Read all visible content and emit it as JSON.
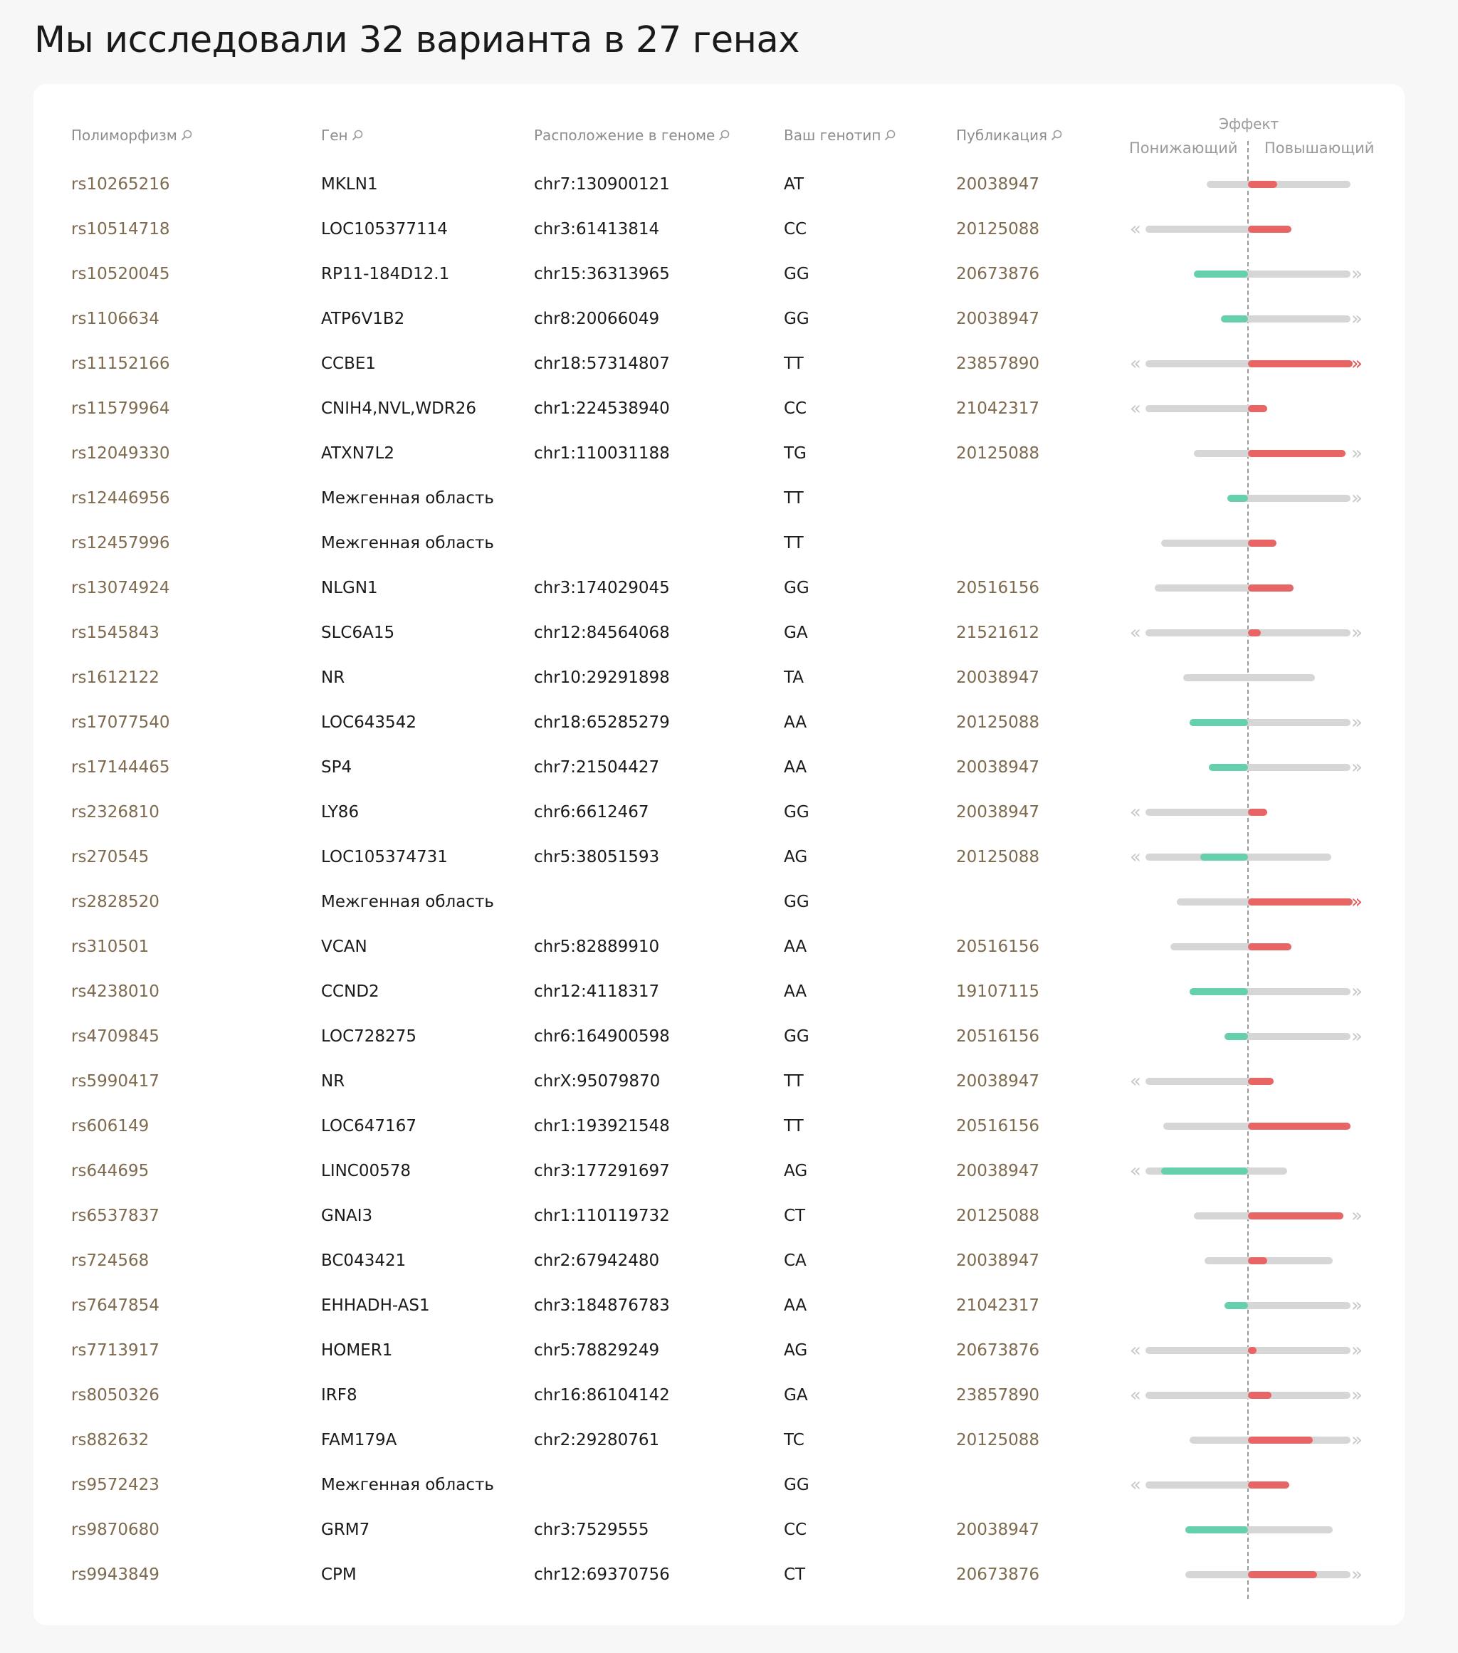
{
  "title": "Мы исследовали 32 варианта в 27 генах",
  "headers": {
    "rs": "Полиморфизм",
    "gene": "Ген",
    "location": "Расположение в геноме",
    "genotype": "Ваш генотип",
    "publication": "Публикация",
    "effect": "Эффект",
    "effect_low": "Понижающий",
    "effect_high": "Повышающий"
  },
  "icons": {
    "search": "magnifier-icon",
    "arrow_left": "«",
    "arrow_right": "»"
  },
  "colors": {
    "link": "#7e6a4e",
    "decrease": "#66cfad",
    "increase": "#e86566",
    "range": "#d6d6d6"
  },
  "rows": [
    {
      "rs": "rs10265216",
      "gene": "MKLN1",
      "loc": "chr7:130900121",
      "gt": "AT",
      "pub": "20038947",
      "range": [
        -0.38,
        0.95
      ],
      "effect": 0.27,
      "la": false,
      "ra": false,
      "rred": false
    },
    {
      "rs": "rs10514718",
      "gene": "LOC105377114",
      "loc": "chr3:61413814",
      "gt": "CC",
      "pub": "20125088",
      "range": [
        -0.95,
        0.4
      ],
      "effect": 0.4,
      "la": true,
      "ra": false,
      "rred": false
    },
    {
      "rs": "rs10520045",
      "gene": "RP11-184D12.1",
      "loc": "chr15:36313965",
      "gt": "GG",
      "pub": "20673876",
      "range": [
        -0.5,
        0.95
      ],
      "effect": -0.5,
      "la": false,
      "ra": true,
      "rred": false
    },
    {
      "rs": "rs1106634",
      "gene": "ATP6V1B2",
      "loc": "chr8:20066049",
      "gt": "GG",
      "pub": "20038947",
      "range": [
        -0.25,
        0.95
      ],
      "effect": -0.25,
      "la": false,
      "ra": true,
      "rred": false
    },
    {
      "rs": "rs11152166",
      "gene": "CCBE1",
      "loc": "chr18:57314807",
      "gt": "TT",
      "pub": "23857890",
      "range": [
        -0.95,
        0.97
      ],
      "effect": 0.97,
      "la": true,
      "ra": true,
      "rred": true
    },
    {
      "rs": "rs11579964",
      "gene": "CNIH4,NVL,WDR26",
      "loc": "chr1:224538940",
      "gt": "CC",
      "pub": "21042317",
      "range": [
        -0.95,
        0.18
      ],
      "effect": 0.18,
      "la": true,
      "ra": false,
      "rred": false
    },
    {
      "rs": "rs12049330",
      "gene": "ATXN7L2",
      "loc": "chr1:110031188",
      "gt": "TG",
      "pub": "20125088",
      "range": [
        -0.5,
        0.9
      ],
      "effect": 0.9,
      "la": false,
      "ra": true,
      "rred": false
    },
    {
      "rs": "rs12446956",
      "gene": "Межгенная область",
      "loc": "",
      "gt": "TT",
      "pub": "",
      "range": [
        -0.19,
        0.95
      ],
      "effect": -0.19,
      "la": false,
      "ra": true,
      "rred": false
    },
    {
      "rs": "rs12457996",
      "gene": "Межгенная область",
      "loc": "",
      "gt": "TT",
      "pub": "",
      "range": [
        -0.8,
        0.26
      ],
      "effect": 0.26,
      "la": false,
      "ra": false,
      "rred": false
    },
    {
      "rs": "rs13074924",
      "gene": "NLGN1",
      "loc": "chr3:174029045",
      "gt": "GG",
      "pub": "20516156",
      "range": [
        -0.86,
        0.42
      ],
      "effect": 0.42,
      "la": false,
      "ra": false,
      "rred": false
    },
    {
      "rs": "rs1545843",
      "gene": "SLC6A15",
      "loc": "chr12:84564068",
      "gt": "GA",
      "pub": "21521612",
      "range": [
        -0.95,
        0.95
      ],
      "effect": 0.12,
      "la": true,
      "ra": true,
      "rred": false
    },
    {
      "rs": "rs1612122",
      "gene": "NR",
      "loc": "chr10:29291898",
      "gt": "TA",
      "pub": "20038947",
      "range": [
        -0.6,
        0.62
      ],
      "effect": 0,
      "la": false,
      "ra": false,
      "rred": false
    },
    {
      "rs": "rs17077540",
      "gene": "LOC643542",
      "loc": "chr18:65285279",
      "gt": "AA",
      "pub": "20125088",
      "range": [
        -0.54,
        0.95
      ],
      "effect": -0.54,
      "la": false,
      "ra": true,
      "rred": false
    },
    {
      "rs": "rs17144465",
      "gene": "SP4",
      "loc": "chr7:21504427",
      "gt": "AA",
      "pub": "20038947",
      "range": [
        -0.36,
        0.95
      ],
      "effect": -0.36,
      "la": false,
      "ra": true,
      "rred": false
    },
    {
      "rs": "rs2326810",
      "gene": "LY86",
      "loc": "chr6:6612467",
      "gt": "GG",
      "pub": "20038947",
      "range": [
        -0.95,
        0.18
      ],
      "effect": 0.18,
      "la": true,
      "ra": false,
      "rred": false
    },
    {
      "rs": "rs270545",
      "gene": "LOC105374731",
      "loc": "chr5:38051593",
      "gt": "AG",
      "pub": "20125088",
      "range": [
        -0.95,
        0.77
      ],
      "effect": -0.44,
      "la": true,
      "ra": false,
      "rred": false
    },
    {
      "rs": "rs2828520",
      "gene": "Межгенная область",
      "loc": "",
      "gt": "GG",
      "pub": "",
      "range": [
        -0.66,
        0.97
      ],
      "effect": 0.97,
      "la": false,
      "ra": true,
      "rred": true
    },
    {
      "rs": "rs310501",
      "gene": "VCAN",
      "loc": "chr5:82889910",
      "gt": "AA",
      "pub": "20516156",
      "range": [
        -0.72,
        0.4
      ],
      "effect": 0.4,
      "la": false,
      "ra": false,
      "rred": false
    },
    {
      "rs": "rs4238010",
      "gene": "CCND2",
      "loc": "chr12:4118317",
      "gt": "AA",
      "pub": "19107115",
      "range": [
        -0.54,
        0.95
      ],
      "effect": -0.54,
      "la": false,
      "ra": true,
      "rred": false
    },
    {
      "rs": "rs4709845",
      "gene": "LOC728275",
      "loc": "chr6:164900598",
      "gt": "GG",
      "pub": "20516156",
      "range": [
        -0.22,
        0.95
      ],
      "effect": -0.22,
      "la": false,
      "ra": true,
      "rred": false
    },
    {
      "rs": "rs5990417",
      "gene": "NR",
      "loc": "chrX:95079870",
      "gt": "TT",
      "pub": "20038947",
      "range": [
        -0.95,
        0.24
      ],
      "effect": 0.24,
      "la": true,
      "ra": false,
      "rred": false
    },
    {
      "rs": "rs606149",
      "gene": "LOC647167",
      "loc": "chr1:193921548",
      "gt": "TT",
      "pub": "20516156",
      "range": [
        -0.78,
        0.95
      ],
      "effect": 0.95,
      "la": false,
      "ra": false,
      "rred": false
    },
    {
      "rs": "rs644695",
      "gene": "LINC00578",
      "loc": "chr3:177291697",
      "gt": "AG",
      "pub": "20038947",
      "range": [
        -0.95,
        0.36
      ],
      "effect": -0.8,
      "la": true,
      "ra": false,
      "rred": false
    },
    {
      "rs": "rs6537837",
      "gene": "GNAI3",
      "loc": "chr1:110119732",
      "gt": "CT",
      "pub": "20125088",
      "range": [
        -0.5,
        0.88
      ],
      "effect": 0.88,
      "la": false,
      "ra": true,
      "rred": false
    },
    {
      "rs": "rs724568",
      "gene": "BC043421",
      "loc": "chr2:67942480",
      "gt": "CA",
      "pub": "20038947",
      "range": [
        -0.4,
        0.78
      ],
      "effect": 0.18,
      "la": false,
      "ra": false,
      "rred": false
    },
    {
      "rs": "rs7647854",
      "gene": "EHHADH-AS1",
      "loc": "chr3:184876783",
      "gt": "AA",
      "pub": "21042317",
      "range": [
        -0.22,
        0.95
      ],
      "effect": -0.22,
      "la": false,
      "ra": true,
      "rred": false
    },
    {
      "rs": "rs7713917",
      "gene": "HOMER1",
      "loc": "chr5:78829249",
      "gt": "AG",
      "pub": "20673876",
      "range": [
        -0.95,
        0.95
      ],
      "effect": 0.08,
      "la": true,
      "ra": true,
      "rred": false
    },
    {
      "rs": "rs8050326",
      "gene": "IRF8",
      "loc": "chr16:86104142",
      "gt": "GA",
      "pub": "23857890",
      "range": [
        -0.95,
        0.95
      ],
      "effect": 0.22,
      "la": true,
      "ra": true,
      "rred": false
    },
    {
      "rs": "rs882632",
      "gene": "FAM179A",
      "loc": "chr2:29280761",
      "gt": "TC",
      "pub": "20125088",
      "range": [
        -0.54,
        0.95
      ],
      "effect": 0.6,
      "la": false,
      "ra": true,
      "rred": false
    },
    {
      "rs": "rs9572423",
      "gene": "Межгенная область",
      "loc": "",
      "gt": "GG",
      "pub": "",
      "range": [
        -0.95,
        0.38
      ],
      "effect": 0.38,
      "la": true,
      "ra": false,
      "rred": false
    },
    {
      "rs": "rs9870680",
      "gene": "GRM7",
      "loc": "chr3:7529555",
      "gt": "CC",
      "pub": "20038947",
      "range": [
        -0.58,
        0.78
      ],
      "effect": -0.58,
      "la": false,
      "ra": false,
      "rred": false
    },
    {
      "rs": "rs9943849",
      "gene": "CPM",
      "loc": "chr12:69370756",
      "gt": "CT",
      "pub": "20673876",
      "range": [
        -0.58,
        0.95
      ],
      "effect": 0.64,
      "la": false,
      "ra": true,
      "rred": false
    }
  ]
}
